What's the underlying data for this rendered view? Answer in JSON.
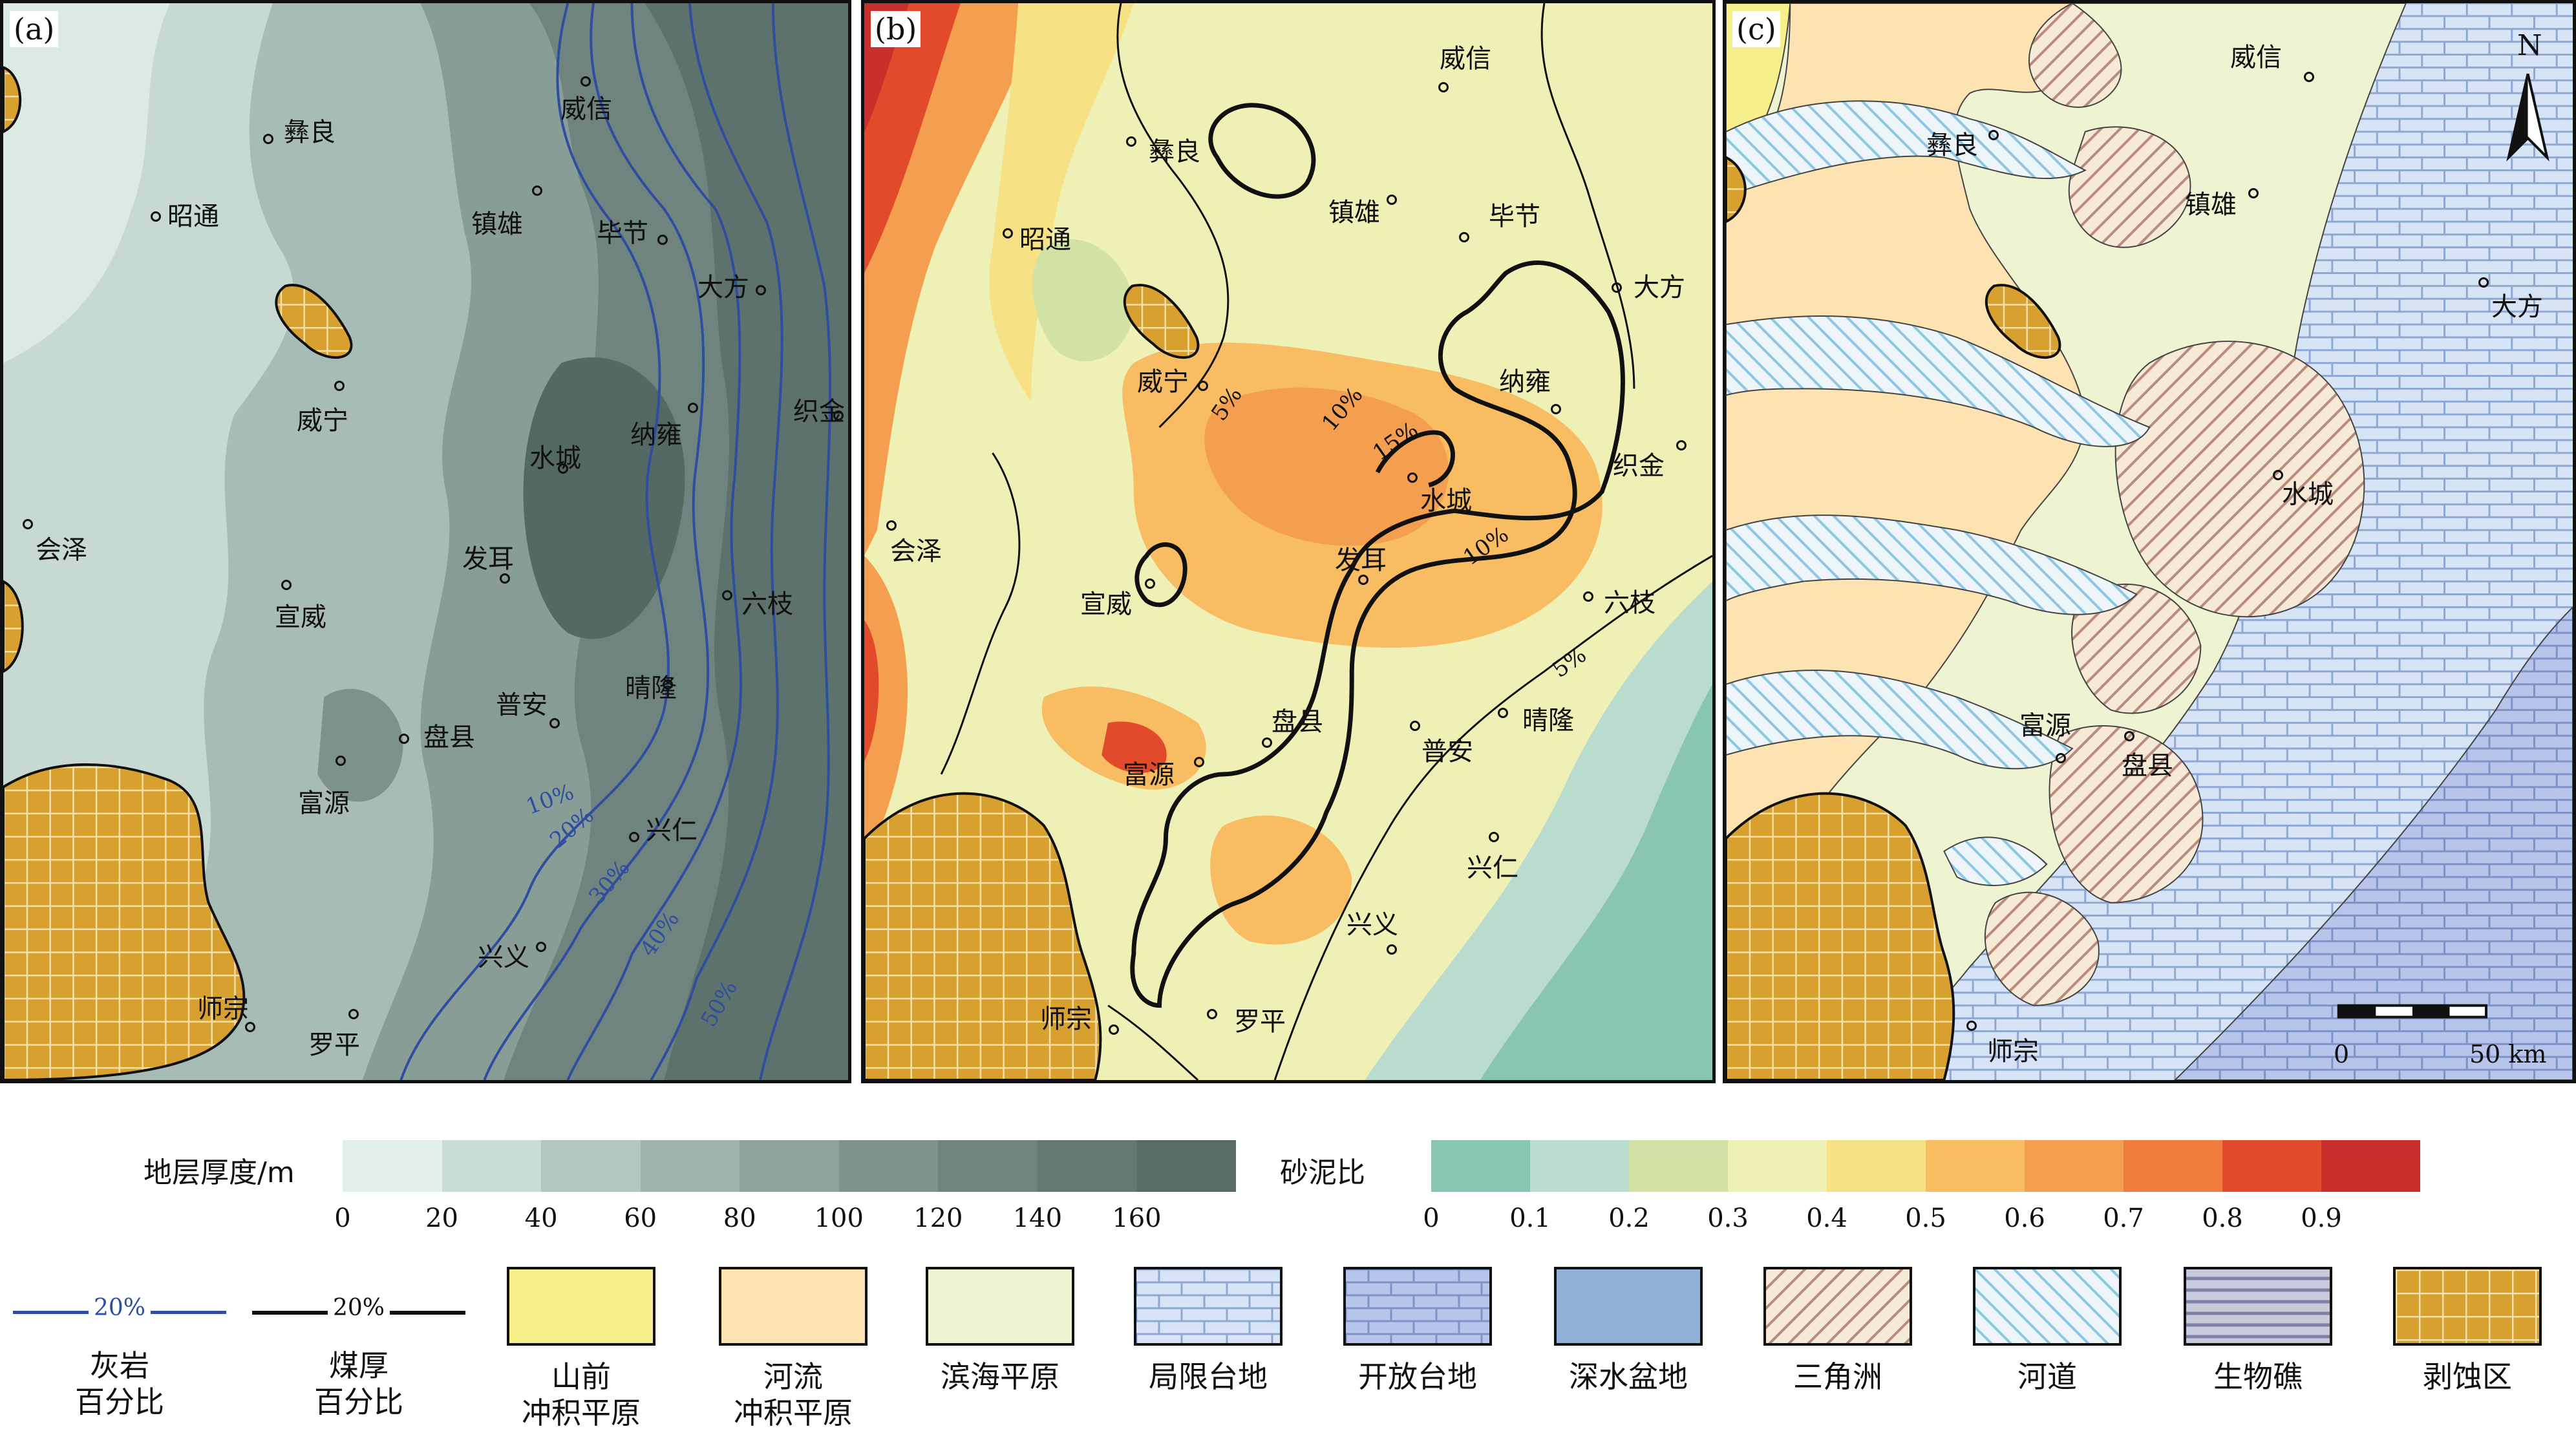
{
  "panels": [
    {
      "id": "a",
      "label": "(a)"
    },
    {
      "id": "b",
      "label": "(b)"
    },
    {
      "id": "c",
      "label": "(c)"
    }
  ],
  "cities_a": [
    "彝良",
    "昭通",
    "威信",
    "镇雄",
    "毕节",
    "大方",
    "威宁",
    "纳雍",
    "织金",
    "水城",
    "会泽",
    "发耳",
    "六枝",
    "宣威",
    "普安",
    "晴隆",
    "盘县",
    "富源",
    "兴仁",
    "兴义",
    "师宗",
    "罗平"
  ],
  "cities_b": [
    "威信",
    "彝良",
    "昭通",
    "镇雄",
    "毕节",
    "大方",
    "威宁",
    "纳雍",
    "织金",
    "水城",
    "会泽",
    "发耳",
    "六枝",
    "宣威",
    "盘县",
    "普安",
    "晴隆",
    "富源",
    "兴仁",
    "兴义",
    "师宗",
    "罗平"
  ],
  "cities_c": [
    "威信",
    "彝良",
    "镇雄",
    "大方",
    "水城",
    "富源",
    "盘县",
    "师宗"
  ],
  "contours_a": [
    "10%",
    "20%",
    "30%",
    "40%",
    "50%"
  ],
  "contours_b": [
    "5%",
    "10%",
    "15%",
    "10%",
    "5%"
  ],
  "north": "N",
  "scale": {
    "start": "0",
    "end": "50 km"
  },
  "thickness_legend": {
    "title": "地层厚度/m",
    "ticks": [
      "0",
      "20",
      "40",
      "60",
      "80",
      "100",
      "120",
      "140",
      "160"
    ],
    "colors": [
      "#e3efe9",
      "#c8ddd4",
      "#b2c8bf",
      "#9fb5ad",
      "#8ea39b",
      "#7e938b",
      "#708580",
      "#637873",
      "#576c67"
    ]
  },
  "sand_legend": {
    "title": "砂泥比",
    "ticks": [
      "0",
      "0.1",
      "0.2",
      "0.3",
      "0.4",
      "0.5",
      "0.6",
      "0.7",
      "0.8",
      "0.9"
    ],
    "colors": [
      "#88c6b1",
      "#b9dccf",
      "#d1e2a4",
      "#eef0b6",
      "#f6e184",
      "#f8bd63",
      "#f39f4f",
      "#ee7d3c",
      "#e24a2c",
      "#c9302c"
    ]
  },
  "line_legend": [
    {
      "sample": "20%",
      "label": "灰岩\n百分比",
      "color": "#2f4ea0"
    },
    {
      "sample": "20%",
      "label": "煤厚\n百分比",
      "color": "#111111"
    }
  ],
  "facies_legend": [
    {
      "key": "piedmont",
      "label": "山前\n冲积平原",
      "color": "#f7ef8a"
    },
    {
      "key": "fluvial",
      "label": "河流\n冲积平原",
      "color": "#fde2b2"
    },
    {
      "key": "coastal",
      "label": "滨海平原",
      "color": "#eef4d2"
    },
    {
      "key": "restricted",
      "label": "局限台地",
      "color": "#dbe8f6"
    },
    {
      "key": "open",
      "label": "开放台地",
      "color": "#b7c5ea"
    },
    {
      "key": "deep",
      "label": "深水盆地",
      "color": "#8fb0d8"
    },
    {
      "key": "delta",
      "label": "三角洲",
      "color": "#f6ead6"
    },
    {
      "key": "channel",
      "label": "河道",
      "color": "#eef5f8"
    },
    {
      "key": "reef",
      "label": "生物礁",
      "color": "#c7cadb"
    },
    {
      "key": "erosion",
      "label": "剥蚀区",
      "color": "#d8a02f"
    }
  ]
}
